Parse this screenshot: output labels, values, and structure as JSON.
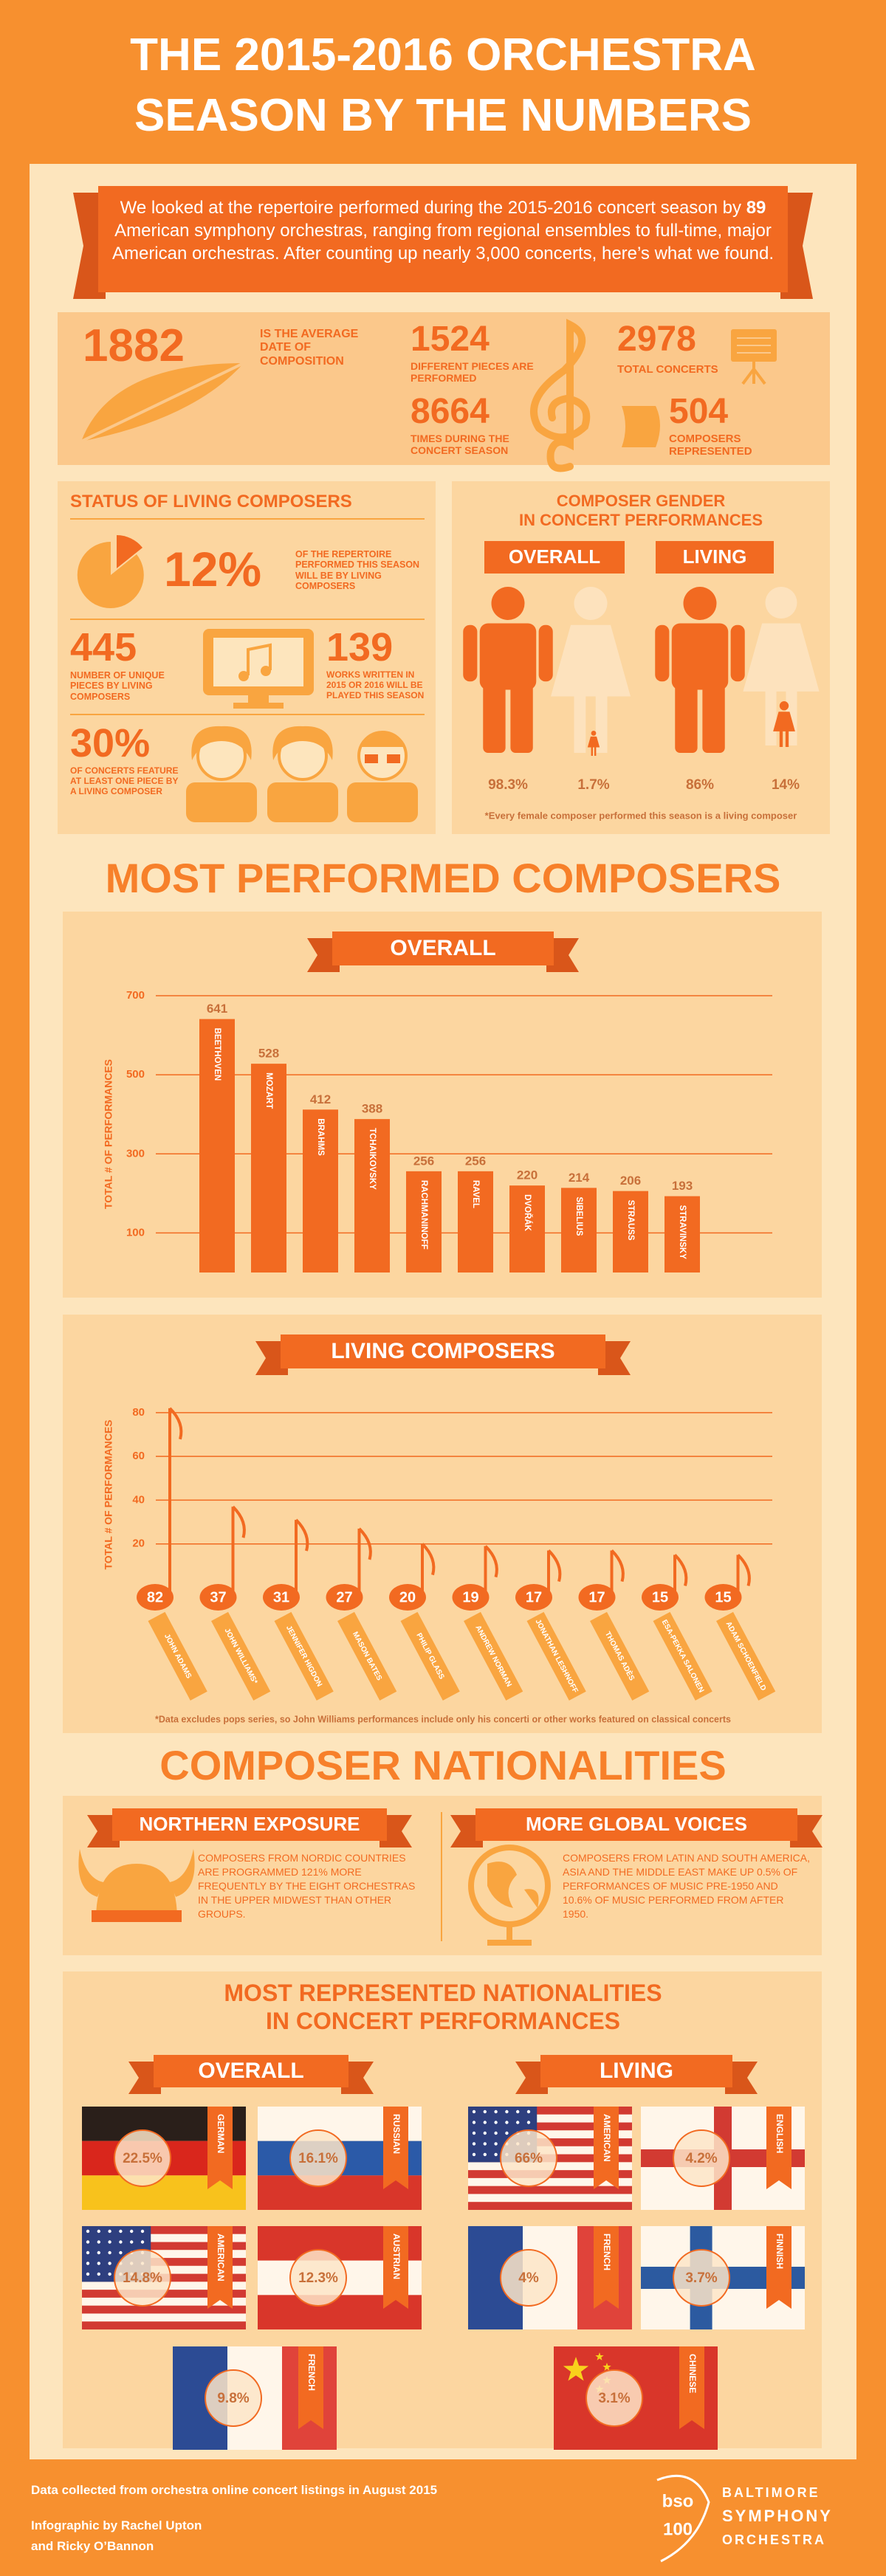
{
  "header": {
    "title_lines": [
      "THE 2015-2016 ORCHESTRA",
      "SEASON BY THE NUMBERS"
    ]
  },
  "intro": {
    "text_before": "We looked at the repertoire performed during the 2015-2016 concert season by ",
    "bold": "89",
    "text_after": " American symphony orchestras, ranging from regional ensembles to full-time, major American orchestras. After counting up nearly 3,000 concerts, here’s what we found."
  },
  "stats": {
    "average_date": {
      "number": 1882,
      "label": "IS THE AVERAGE DATE OF COMPOSITION"
    },
    "pieces": {
      "number": 1524,
      "label": "DIFFERENT PIECES ARE PERFORMED"
    },
    "performances": {
      "number": 8664,
      "label": "TIMES DURING THE CONCERT SEASON"
    },
    "concerts": {
      "number": 2978,
      "label": "TOTAL CONCERTS"
    },
    "composers": {
      "number": 504,
      "label": "COMPOSERS REPRESENTED"
    }
  },
  "living_status": {
    "title": "STATUS OF LIVING COMPOSERS",
    "repertoire": {
      "figure": "12%",
      "label": "OF THE REPERTOIRE PERFORMED THIS SEASON WILL BE BY LIVING COMPOSERS"
    },
    "pieces": {
      "figure": 445,
      "label": "NUMBER OF UNIQUE PIECES BY LIVING COMPOSERS"
    },
    "new_works": {
      "figure": 139,
      "label": "WORKS WRITTEN IN 2015 OR 2016 WILL BE PLAYED THIS SEASON"
    },
    "concerts": {
      "figure": "30%",
      "label": "OF CONCERTS FEATURE AT LEAST ONE PIECE BY A LIVING COMPOSER"
    }
  },
  "gender": {
    "title_lines": [
      "COMPOSER GENDER",
      "IN CONCERT PERFORMANCES"
    ],
    "overall": {
      "label": "OVERALL",
      "male": "98.3%",
      "female": "1.7%"
    },
    "living": {
      "label": "LIVING",
      "male": "86%",
      "female": "14%"
    },
    "note": "*Every female composer performed this season is a living composer"
  },
  "most_performed": {
    "title": "MOST PERFORMED COMPOSERS",
    "charts": [
      {
        "type": "bar",
        "title": "OVERALL",
        "y_label": "TOTAL # OF PERFORMANCES",
        "categories": [
          "BEETHOVEN",
          "MOZART",
          "BRAHMS",
          "TCHAIKOVSKY",
          "RACHMANINOFF",
          "RAVEL",
          "DVOŘÁK",
          "SIBELIUS",
          "STRAUSS",
          "STRAVINSKY"
        ],
        "values": [
          641,
          528,
          412,
          388,
          256,
          256,
          220,
          214,
          206,
          193
        ],
        "ylim": [
          0,
          700
        ],
        "yticks": [
          100,
          300,
          500,
          700
        ],
        "grid": true,
        "color": "#f26a21"
      },
      {
        "type": "lollipop",
        "title": "LIVING COMPOSERS",
        "y_label": "TOTAL # OF PERFORMANCES",
        "categories": [
          "JOHN ADAMS",
          "JOHN WILLIAMS*",
          "JENNIFER HIGDON",
          "MASON BATES",
          "PHILIP GLASS",
          "ANDREW NORMAN",
          "JONATHAN LESHNOFF",
          "THOMAS ADÈS",
          "ESA-PEKKA SALONEN",
          "ADAM SCHOENFIELD"
        ],
        "values": [
          82,
          37,
          31,
          27,
          20,
          19,
          17,
          17,
          15,
          15
        ],
        "ylim": [
          0,
          85
        ],
        "yticks": [
          20,
          40,
          60,
          80
        ],
        "grid": true,
        "color": "#f26a21",
        "note": "*Data excludes pops series, so John Williams performances include only his concerti or other works featured on classical concerts"
      }
    ]
  },
  "nationalities": {
    "title": "COMPOSER NATIONALITIES",
    "northern": {
      "heading": "NORTHERN EXPOSURE",
      "text": "COMPOSERS FROM NORDIC COUNTRIES ARE PROGRAMMED 121% MORE FREQUENTLY BY THE EIGHT ORCHESTRAS IN THE UPPER MIDWEST THAN OTHER GROUPS."
    },
    "global": {
      "heading": "MORE GLOBAL VOICES",
      "text": "COMPOSERS FROM LATIN AND SOUTH AMERICA, ASIA AND THE MIDDLE EAST MAKE UP 0.5% OF PERFORMANCES OF MUSIC PRE-1950 AND 10.6% OF MUSIC PERFORMED FROM AFTER 1950."
    },
    "represented": {
      "title_lines": [
        "MOST REPRESENTED NATIONALITIES",
        "IN CONCERT PERFORMANCES"
      ],
      "overall": {
        "label": "OVERALL",
        "items": [
          {
            "country": "GERMAN",
            "share": "22.5%"
          },
          {
            "country": "RUSSIAN",
            "share": "16.1%"
          },
          {
            "country": "AMERICAN",
            "share": "14.8%"
          },
          {
            "country": "AUSTRIAN",
            "share": "12.3%"
          },
          {
            "country": "FRENCH",
            "share": "9.8%"
          }
        ]
      },
      "living": {
        "label": "LIVING",
        "items": [
          {
            "country": "AMERICAN",
            "share": "66%"
          },
          {
            "country": "ENGLISH",
            "share": "4.2%"
          },
          {
            "country": "FRENCH",
            "share": "4%"
          },
          {
            "country": "FINNISH",
            "share": "3.7%"
          },
          {
            "country": "CHINESE",
            "share": "3.1%"
          }
        ]
      }
    }
  },
  "footer": {
    "source": "Data collected from orchestra online concert listings in August 2015",
    "credits": [
      "Infographic by Rachel Upton",
      "and Ricky O’Bannon"
    ],
    "logo_mark": [
      "bso",
      "100"
    ],
    "logo_lines": [
      "BALTIMORE",
      "SYMPHONY",
      "ORCHESTRA"
    ]
  }
}
